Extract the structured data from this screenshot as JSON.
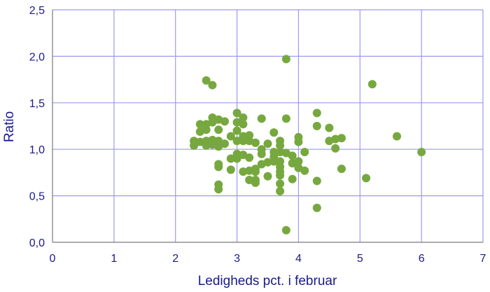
{
  "chart_data": {
    "type": "scatter",
    "title": "",
    "xlabel": "Ledigheds pct. i februar",
    "ylabel": "Ratio",
    "xlim": [
      0,
      7
    ],
    "ylim": [
      0,
      2.5
    ],
    "x_ticks": [
      "0",
      "1",
      "2",
      "3",
      "4",
      "5",
      "6",
      "7"
    ],
    "y_ticks": [
      "0,0",
      "0,5",
      "1,0",
      "1,5",
      "2,0",
      "2,5"
    ],
    "grid": true,
    "marker_color": "#77a83f",
    "grid_color": "#9a9af0",
    "text_color": "#1a1a8c",
    "points": [
      {
        "x": 2.3,
        "y": 1.09
      },
      {
        "x": 2.3,
        "y": 1.04
      },
      {
        "x": 2.4,
        "y": 1.27
      },
      {
        "x": 2.4,
        "y": 1.19
      },
      {
        "x": 2.4,
        "y": 1.08
      },
      {
        "x": 2.5,
        "y": 1.74
      },
      {
        "x": 2.5,
        "y": 1.27
      },
      {
        "x": 2.5,
        "y": 1.21
      },
      {
        "x": 2.5,
        "y": 1.09
      },
      {
        "x": 2.5,
        "y": 1.04
      },
      {
        "x": 2.6,
        "y": 1.69
      },
      {
        "x": 2.6,
        "y": 1.34
      },
      {
        "x": 2.6,
        "y": 1.29
      },
      {
        "x": 2.6,
        "y": 1.1
      },
      {
        "x": 2.6,
        "y": 1.05
      },
      {
        "x": 2.7,
        "y": 1.32
      },
      {
        "x": 2.7,
        "y": 1.21
      },
      {
        "x": 2.7,
        "y": 1.09
      },
      {
        "x": 2.7,
        "y": 1.03
      },
      {
        "x": 2.7,
        "y": 0.84
      },
      {
        "x": 2.7,
        "y": 0.81
      },
      {
        "x": 2.7,
        "y": 0.62
      },
      {
        "x": 2.7,
        "y": 0.57
      },
      {
        "x": 2.8,
        "y": 1.3
      },
      {
        "x": 2.8,
        "y": 1.06
      },
      {
        "x": 2.9,
        "y": 1.14
      },
      {
        "x": 2.9,
        "y": 0.9
      },
      {
        "x": 2.9,
        "y": 0.78
      },
      {
        "x": 3.0,
        "y": 1.39
      },
      {
        "x": 3.0,
        "y": 1.29
      },
      {
        "x": 3.0,
        "y": 1.2
      },
      {
        "x": 3.0,
        "y": 1.09
      },
      {
        "x": 3.0,
        "y": 0.95
      },
      {
        "x": 3.0,
        "y": 0.9
      },
      {
        "x": 3.1,
        "y": 1.34
      },
      {
        "x": 3.1,
        "y": 1.27
      },
      {
        "x": 3.1,
        "y": 1.14
      },
      {
        "x": 3.1,
        "y": 1.09
      },
      {
        "x": 3.1,
        "y": 0.94
      },
      {
        "x": 3.1,
        "y": 0.76
      },
      {
        "x": 3.2,
        "y": 1.15
      },
      {
        "x": 3.2,
        "y": 1.09
      },
      {
        "x": 3.2,
        "y": 0.91
      },
      {
        "x": 3.2,
        "y": 0.77
      },
      {
        "x": 3.2,
        "y": 0.67
      },
      {
        "x": 3.3,
        "y": 1.07
      },
      {
        "x": 3.3,
        "y": 0.79
      },
      {
        "x": 3.3,
        "y": 0.76
      },
      {
        "x": 3.3,
        "y": 0.67
      },
      {
        "x": 3.3,
        "y": 0.64
      },
      {
        "x": 3.4,
        "y": 1.33
      },
      {
        "x": 3.4,
        "y": 1.0
      },
      {
        "x": 3.4,
        "y": 0.95
      },
      {
        "x": 3.4,
        "y": 0.84
      },
      {
        "x": 3.5,
        "y": 1.06
      },
      {
        "x": 3.5,
        "y": 0.86
      },
      {
        "x": 3.5,
        "y": 0.71
      },
      {
        "x": 3.6,
        "y": 1.18
      },
      {
        "x": 3.6,
        "y": 0.97
      },
      {
        "x": 3.6,
        "y": 0.92
      },
      {
        "x": 3.6,
        "y": 0.87
      },
      {
        "x": 3.7,
        "y": 1.09
      },
      {
        "x": 3.7,
        "y": 1.04
      },
      {
        "x": 3.7,
        "y": 0.97
      },
      {
        "x": 3.7,
        "y": 0.87
      },
      {
        "x": 3.7,
        "y": 0.81
      },
      {
        "x": 3.7,
        "y": 0.76
      },
      {
        "x": 3.7,
        "y": 0.72
      },
      {
        "x": 3.7,
        "y": 0.63
      },
      {
        "x": 3.7,
        "y": 0.55
      },
      {
        "x": 3.8,
        "y": 1.97
      },
      {
        "x": 3.8,
        "y": 1.33
      },
      {
        "x": 3.8,
        "y": 0.96
      },
      {
        "x": 3.8,
        "y": 0.13
      },
      {
        "x": 3.9,
        "y": 0.93
      },
      {
        "x": 3.9,
        "y": 0.85
      },
      {
        "x": 3.9,
        "y": 0.68
      },
      {
        "x": 4.0,
        "y": 1.13
      },
      {
        "x": 4.0,
        "y": 1.08
      },
      {
        "x": 4.0,
        "y": 0.87
      },
      {
        "x": 4.0,
        "y": 0.8
      },
      {
        "x": 4.1,
        "y": 0.97
      },
      {
        "x": 4.1,
        "y": 0.77
      },
      {
        "x": 4.3,
        "y": 1.39
      },
      {
        "x": 4.3,
        "y": 1.25
      },
      {
        "x": 4.3,
        "y": 0.66
      },
      {
        "x": 4.3,
        "y": 0.37
      },
      {
        "x": 4.5,
        "y": 1.23
      },
      {
        "x": 4.5,
        "y": 1.09
      },
      {
        "x": 4.6,
        "y": 1.11
      },
      {
        "x": 4.6,
        "y": 1.01
      },
      {
        "x": 4.7,
        "y": 1.12
      },
      {
        "x": 4.7,
        "y": 0.79
      },
      {
        "x": 5.1,
        "y": 0.69
      },
      {
        "x": 5.2,
        "y": 1.7
      },
      {
        "x": 5.6,
        "y": 1.14
      },
      {
        "x": 6.0,
        "y": 0.97
      }
    ]
  }
}
